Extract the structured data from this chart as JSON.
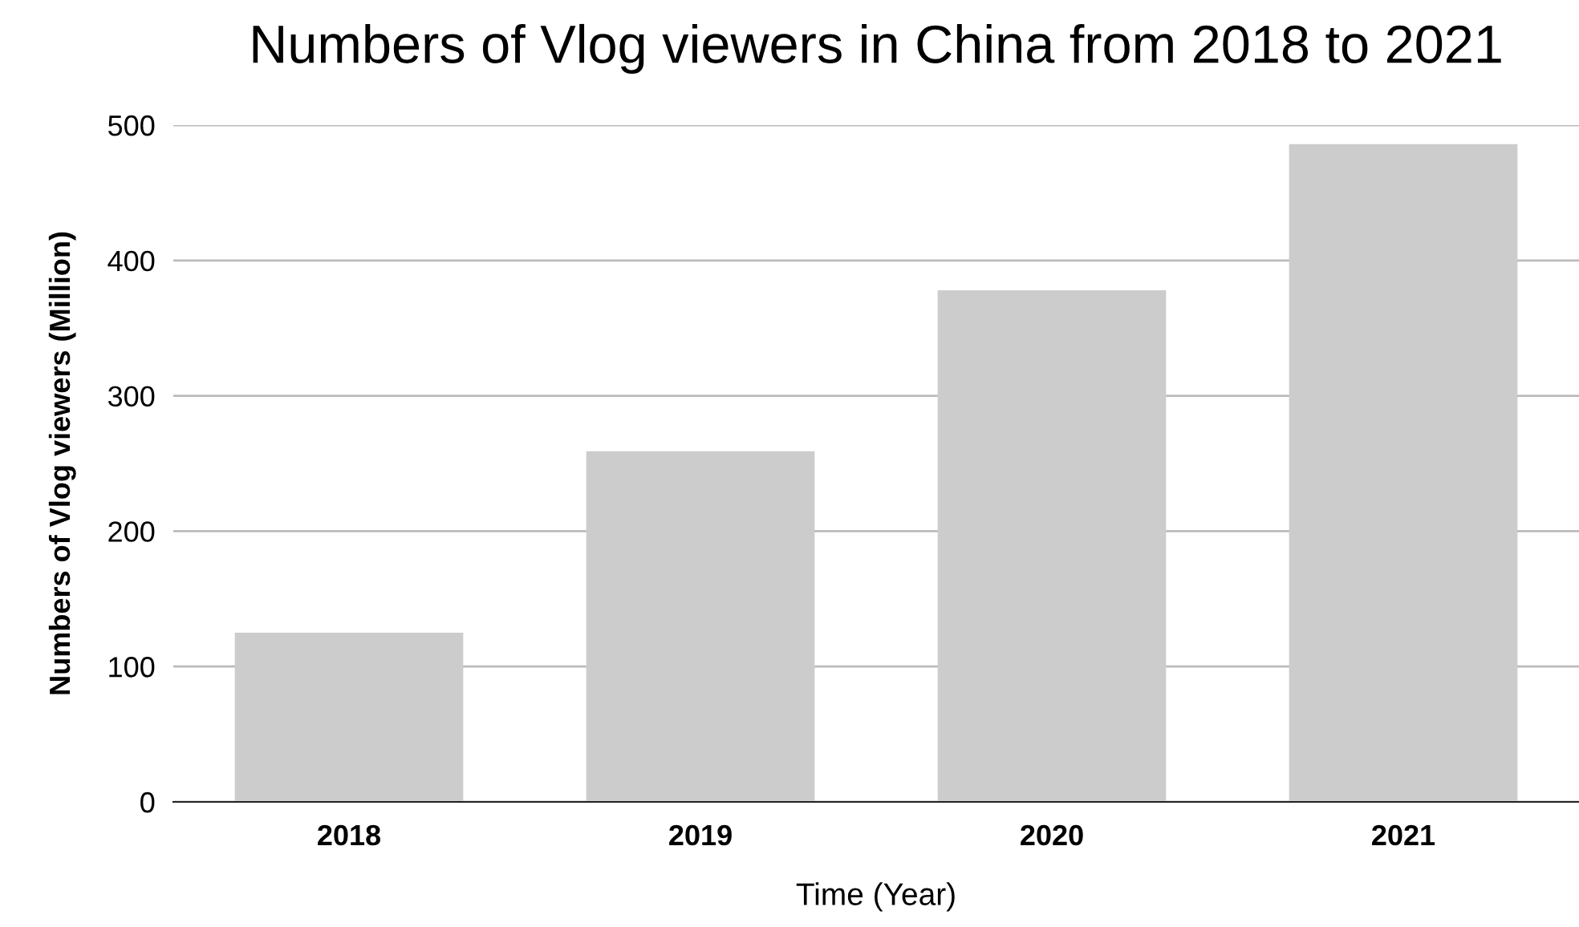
{
  "chart_data": {
    "type": "bar",
    "title": "Numbers of Vlog viewers in China from 2018 to 2021",
    "xlabel": "Time (Year)",
    "ylabel": "Numbers of Vlog viewers (Million)",
    "categories": [
      "2018",
      "2019",
      "2020",
      "2021"
    ],
    "values": [
      125,
      259,
      378,
      486
    ],
    "color": "#cccccc",
    "ylim": [
      0,
      500
    ],
    "yticks": [
      0,
      100,
      200,
      300,
      400,
      500
    ],
    "grid": "y"
  }
}
